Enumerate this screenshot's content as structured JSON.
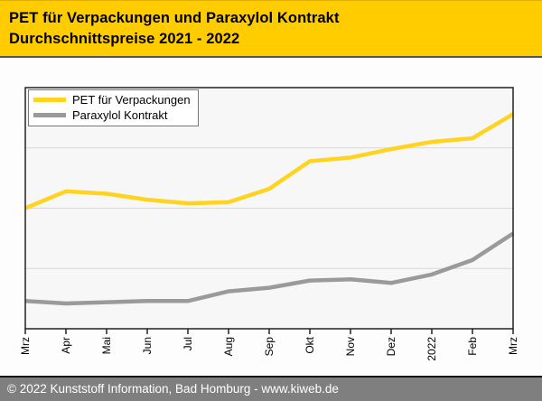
{
  "header": {
    "title_line1": "PET für Verpackungen und Paraxylol Kontrakt",
    "title_line2": "Durchschnittspreise 2021 - 2022",
    "background": "#ffcc00",
    "text_color": "#000000"
  },
  "legend": {
    "items": [
      {
        "label": "PET für Verpackungen",
        "color": "#ffd320"
      },
      {
        "label": "Paraxylol Kontrakt",
        "color": "#9a9a9a"
      }
    ]
  },
  "chart_data": {
    "type": "line",
    "title": "PET für Verpackungen und Paraxylol Kontrakt Durchschnittspreise 2021 - 2022",
    "categories": [
      "Mrz",
      "Apr",
      "Mai",
      "Jun",
      "Jul",
      "Aug",
      "Sep",
      "Okt",
      "Nov",
      "Dez",
      "2022",
      "Feb",
      "Mrz"
    ],
    "series": [
      {
        "name": "PET für Verpackungen",
        "color": "#ffd320",
        "values": [
          50,
          57,
          56,
          53.5,
          52,
          52.5,
          58,
          69.5,
          71,
          74.5,
          77.5,
          79,
          89
        ]
      },
      {
        "name": "Paraxylol Kontrakt",
        "color": "#9a9a9a",
        "values": [
          11.5,
          10.5,
          11,
          11.5,
          11.5,
          15.5,
          17,
          20,
          20.5,
          19,
          22.5,
          28.5,
          39.5
        ]
      }
    ],
    "xlabel": "",
    "ylabel": "",
    "y_axis": {
      "tick_labels_visible": false,
      "ylim": [
        0,
        100
      ],
      "gridlines": [
        25,
        50,
        75
      ]
    },
    "grid": "horizontal",
    "legend_position": "top-left",
    "plot_background": "#f7f7f7",
    "gridline_color": "#d8d8d8",
    "axis_color": "#222222",
    "line_width": 4.5
  },
  "footer": {
    "text": "© 2022 Kunststoff Information, Bad Homburg - www.kiweb.de",
    "background": "#7f7f7f",
    "text_color": "#ffffff"
  }
}
